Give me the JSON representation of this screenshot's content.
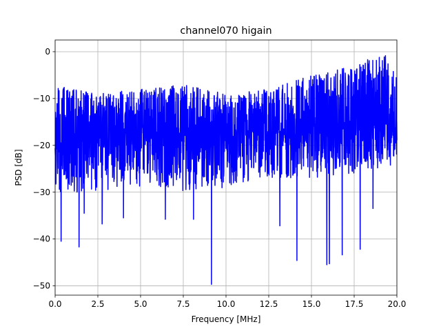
{
  "chart_data": {
    "type": "line",
    "title": "channel070 higain",
    "xlabel": "Frequency [MHz]",
    "ylabel": "PSD [dB]",
    "xlim": [
      0,
      20
    ],
    "ylim": [
      -52,
      2.5
    ],
    "grid": true,
    "line_color": "#0000ff",
    "x_ticks": [
      0,
      2.5,
      5,
      7.5,
      10,
      12.5,
      15,
      17.5,
      20
    ],
    "x_tick_labels": [
      "0.0",
      "2.5",
      "5.0",
      "7.5",
      "10.0",
      "12.5",
      "15.0",
      "17.5",
      "20.0"
    ],
    "y_ticks": [
      0,
      -10,
      -20,
      -30,
      -40,
      -50
    ],
    "y_tick_labels": [
      "0",
      "−10",
      "−20",
      "−30",
      "−40",
      "−50"
    ],
    "series": [
      {
        "sample_count": 2000,
        "baseline": [
          [
            0,
            -19
          ],
          [
            5,
            -18
          ],
          [
            10,
            -17.5
          ],
          [
            15,
            -16
          ],
          [
            20,
            -15
          ]
        ],
        "upper_envelope": [
          [
            0,
            -7
          ],
          [
            2.5,
            -9
          ],
          [
            5,
            -8
          ],
          [
            7.5,
            -7
          ],
          [
            10,
            -9
          ],
          [
            12.5,
            -8
          ],
          [
            15,
            -5
          ],
          [
            17.5,
            -3
          ],
          [
            19.2,
            0
          ],
          [
            20,
            -5
          ]
        ],
        "lower_envelope": [
          [
            0,
            -30
          ],
          [
            2.5,
            -30
          ],
          [
            5,
            -29
          ],
          [
            7.5,
            -30
          ],
          [
            10,
            -29
          ],
          [
            12.5,
            -27
          ],
          [
            15,
            -27
          ],
          [
            17.5,
            -26
          ],
          [
            20,
            -24
          ]
        ],
        "notable_dips": [
          {
            "x": 0.35,
            "y": -40.5
          },
          {
            "x": 1.4,
            "y": -41.7
          },
          {
            "x": 1.7,
            "y": -34.5
          },
          {
            "x": 2.75,
            "y": -36.8
          },
          {
            "x": 4.0,
            "y": -35.5
          },
          {
            "x": 6.45,
            "y": -35.8
          },
          {
            "x": 8.1,
            "y": -35.8
          },
          {
            "x": 9.15,
            "y": -49.7
          },
          {
            "x": 13.15,
            "y": -37.2
          },
          {
            "x": 14.15,
            "y": -44.6
          },
          {
            "x": 15.9,
            "y": -45.5
          },
          {
            "x": 16.05,
            "y": -45.3
          },
          {
            "x": 16.8,
            "y": -43.4
          },
          {
            "x": 17.85,
            "y": -42.2
          },
          {
            "x": 18.6,
            "y": -33.5
          }
        ]
      }
    ]
  }
}
